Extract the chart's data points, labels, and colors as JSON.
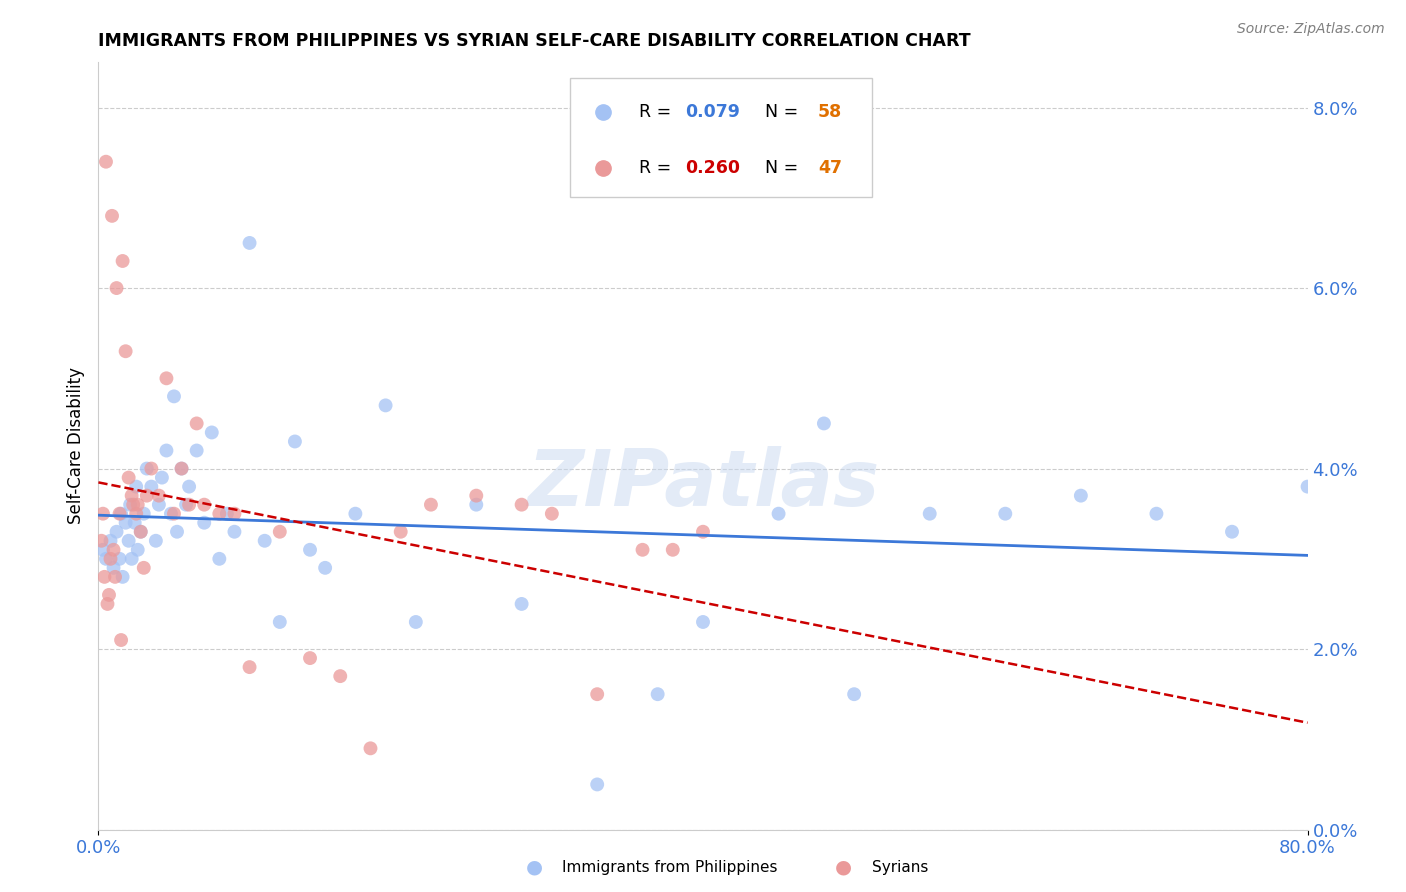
{
  "title": "IMMIGRANTS FROM PHILIPPINES VS SYRIAN SELF-CARE DISABILITY CORRELATION CHART",
  "source": "Source: ZipAtlas.com",
  "ylabel": "Self-Care Disability",
  "right_ytick_vals": [
    0.0,
    2.0,
    4.0,
    6.0,
    8.0
  ],
  "legend_blue_r": "R = 0.079",
  "legend_blue_n": "N = 58",
  "legend_pink_r": "R = 0.260",
  "legend_pink_n": "N = 47",
  "blue_color": "#a4c2f4",
  "pink_color": "#ea9999",
  "blue_line_color": "#3c78d8",
  "pink_line_color": "#cc0000",
  "watermark": "ZIPatlas",
  "blue_scatter_x": [
    0.3,
    0.5,
    0.8,
    1.0,
    1.2,
    1.4,
    1.5,
    1.6,
    1.8,
    2.0,
    2.1,
    2.2,
    2.4,
    2.5,
    2.6,
    2.8,
    3.0,
    3.2,
    3.5,
    3.8,
    4.0,
    4.2,
    4.5,
    4.8,
    5.0,
    5.2,
    5.5,
    5.8,
    6.0,
    6.5,
    7.0,
    7.5,
    8.0,
    8.5,
    9.0,
    10.0,
    11.0,
    12.0,
    13.0,
    14.0,
    15.0,
    17.0,
    19.0,
    21.0,
    25.0,
    28.0,
    33.0,
    37.0,
    40.0,
    45.0,
    48.0,
    50.0,
    55.0,
    60.0,
    65.0,
    70.0,
    75.0,
    80.0
  ],
  "blue_scatter_y": [
    3.1,
    3.0,
    3.2,
    2.9,
    3.3,
    3.0,
    3.5,
    2.8,
    3.4,
    3.2,
    3.6,
    3.0,
    3.4,
    3.8,
    3.1,
    3.3,
    3.5,
    4.0,
    3.8,
    3.2,
    3.6,
    3.9,
    4.2,
    3.5,
    4.8,
    3.3,
    4.0,
    3.6,
    3.8,
    4.2,
    3.4,
    4.4,
    3.0,
    3.5,
    3.3,
    6.5,
    3.2,
    2.3,
    4.3,
    3.1,
    2.9,
    3.5,
    4.7,
    2.3,
    3.6,
    2.5,
    0.5,
    1.5,
    2.3,
    3.5,
    4.5,
    1.5,
    3.5,
    3.5,
    3.7,
    3.5,
    3.3,
    3.8
  ],
  "pink_scatter_x": [
    0.2,
    0.3,
    0.4,
    0.5,
    0.6,
    0.7,
    0.8,
    0.9,
    1.0,
    1.1,
    1.2,
    1.4,
    1.5,
    1.6,
    1.8,
    2.0,
    2.2,
    2.3,
    2.5,
    2.6,
    2.8,
    3.0,
    3.2,
    3.5,
    4.0,
    4.5,
    5.0,
    5.5,
    6.0,
    6.5,
    7.0,
    8.0,
    9.0,
    10.0,
    12.0,
    14.0,
    16.0,
    18.0,
    20.0,
    22.0,
    25.0,
    28.0,
    30.0,
    33.0,
    36.0,
    38.0,
    40.0
  ],
  "pink_scatter_y": [
    3.2,
    3.5,
    2.8,
    7.4,
    2.5,
    2.6,
    3.0,
    6.8,
    3.1,
    2.8,
    6.0,
    3.5,
    2.1,
    6.3,
    5.3,
    3.9,
    3.7,
    3.6,
    3.5,
    3.6,
    3.3,
    2.9,
    3.7,
    4.0,
    3.7,
    5.0,
    3.5,
    4.0,
    3.6,
    4.5,
    3.6,
    3.5,
    3.5,
    1.8,
    3.3,
    1.9,
    1.7,
    0.9,
    3.3,
    3.6,
    3.7,
    3.6,
    3.5,
    1.5,
    3.1,
    3.1,
    3.3
  ],
  "xmin": 0,
  "xmax": 80,
  "ymin": 0,
  "ymax": 8.5
}
